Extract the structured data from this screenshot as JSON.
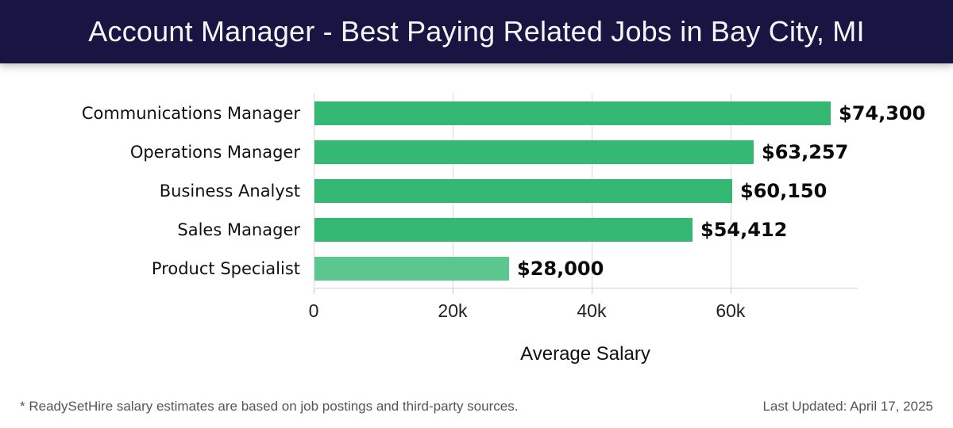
{
  "header": {
    "title": "Account Manager - Best Paying Related Jobs in Bay City, MI",
    "bg_color": "#181542",
    "text_color": "#f5f5f8"
  },
  "chart_data": {
    "type": "bar",
    "orientation": "horizontal",
    "title": "Account Manager - Best Paying Related Jobs in Bay City, MI",
    "categories": [
      "Communications Manager",
      "Operations Manager",
      "Business Analyst",
      "Sales Manager",
      "Product Specialist"
    ],
    "values": [
      74300,
      63257,
      60150,
      54412,
      28000
    ],
    "value_labels": [
      "$74,300",
      "$63,257",
      "$60,150",
      "$54,412",
      "$28,000"
    ],
    "bar_colors": [
      "#35b874",
      "#35b874",
      "#35b874",
      "#35b874",
      "#5bc78e"
    ],
    "xlabel": "Average Salary",
    "ylabel": "",
    "xlim": [
      0,
      78300
    ],
    "x_ticks": [
      {
        "value": 0,
        "label": "0"
      },
      {
        "value": 20000,
        "label": "20k"
      },
      {
        "value": 40000,
        "label": "40k"
      },
      {
        "value": 60000,
        "label": "60k"
      }
    ],
    "grid": true,
    "gridline_color": "#d9d9d9",
    "legend": "none"
  },
  "footer": {
    "disclaimer": "* ReadySetHire salary estimates are based on job postings and third-party sources.",
    "last_updated": "Last Updated: April 17, 2025"
  }
}
